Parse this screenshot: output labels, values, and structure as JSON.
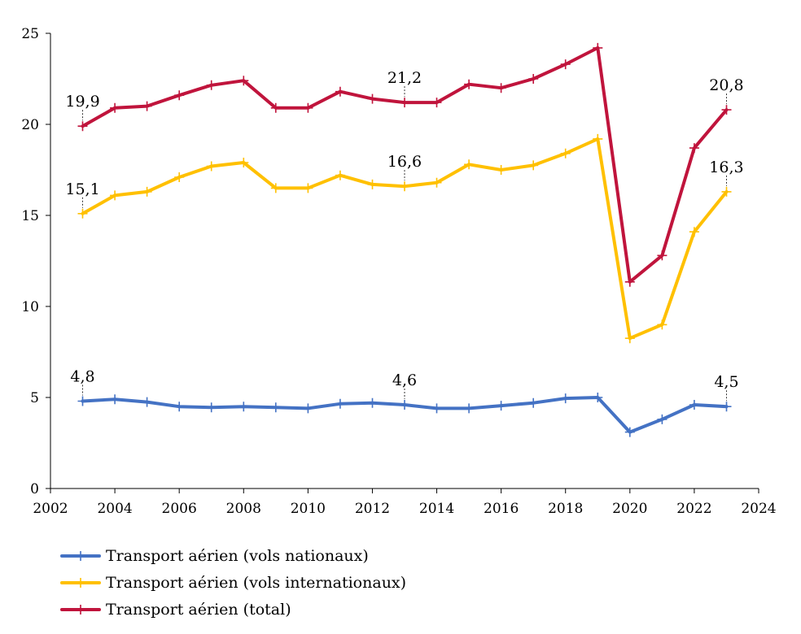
{
  "chart_data": {
    "type": "line",
    "title": "",
    "xlabel": "",
    "ylabel": "",
    "xlim": [
      2002,
      2024
    ],
    "ylim": [
      0,
      25
    ],
    "x_ticks": [
      2002,
      2004,
      2006,
      2008,
      2010,
      2012,
      2014,
      2016,
      2018,
      2020,
      2022,
      2024
    ],
    "y_ticks": [
      0,
      5,
      10,
      15,
      20,
      25
    ],
    "grid": false,
    "legend_position": "bottom-left",
    "x": [
      2003,
      2004,
      2005,
      2006,
      2007,
      2008,
      2009,
      2010,
      2011,
      2012,
      2013,
      2014,
      2015,
      2016,
      2017,
      2018,
      2019,
      2020,
      2021,
      2022,
      2023
    ],
    "series": [
      {
        "name": "Transport aérien (vols nationaux)",
        "color": "#4472c4",
        "values": [
          4.8,
          4.9,
          4.75,
          4.5,
          4.45,
          4.5,
          4.45,
          4.4,
          4.65,
          4.7,
          4.6,
          4.4,
          4.4,
          4.55,
          4.7,
          4.95,
          5.0,
          3.1,
          3.8,
          4.6,
          4.5
        ],
        "data_labels": [
          {
            "x": 2003,
            "text": "4,8"
          },
          {
            "x": 2013,
            "text": "4,6"
          },
          {
            "x": 2023,
            "text": "4,5"
          }
        ]
      },
      {
        "name": "Transport aérien (vols internationaux)",
        "color": "#ffc000",
        "values": [
          15.1,
          16.1,
          16.3,
          17.1,
          17.7,
          17.9,
          16.5,
          16.5,
          17.2,
          16.7,
          16.6,
          16.8,
          17.8,
          17.5,
          17.75,
          18.4,
          19.2,
          8.25,
          9.0,
          14.1,
          16.3
        ],
        "data_labels": [
          {
            "x": 2003,
            "text": "15,1"
          },
          {
            "x": 2013,
            "text": "16,6"
          },
          {
            "x": 2023,
            "text": "16,3"
          }
        ]
      },
      {
        "name": "Transport aérien (total)",
        "color": "#c0143c",
        "values": [
          19.9,
          20.9,
          21.0,
          21.6,
          22.15,
          22.4,
          20.9,
          20.9,
          21.8,
          21.4,
          21.2,
          21.2,
          22.2,
          22.0,
          22.5,
          23.3,
          24.2,
          11.35,
          12.8,
          18.7,
          20.8
        ],
        "data_labels": [
          {
            "x": 2003,
            "text": "19,9"
          },
          {
            "x": 2013,
            "text": "21,2"
          },
          {
            "x": 2023,
            "text": "20,8"
          }
        ]
      }
    ]
  }
}
